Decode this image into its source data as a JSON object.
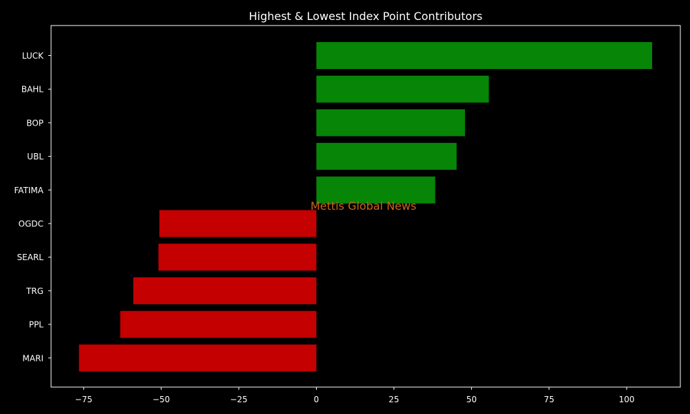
{
  "chart_data": {
    "type": "bar",
    "orientation": "horizontal",
    "title": "Highest & Lowest Index Point Contributors",
    "watermark": "Mettis Global News",
    "categories": [
      "LUCK",
      "BAHL",
      "BOP",
      "UBL",
      "FATIMA",
      "OGDC",
      "SEARL",
      "TRG",
      "PPL",
      "MARI"
    ],
    "values": [
      108.2,
      55.6,
      47.9,
      45.2,
      38.3,
      -50.6,
      -50.9,
      -59.0,
      -63.2,
      -76.5
    ],
    "xlim": [
      -85.5,
      117.3
    ],
    "xticks": [
      -75,
      -50,
      -25,
      0,
      25,
      50,
      75,
      100
    ],
    "xtick_labels": [
      "−75",
      "−50",
      "−25",
      "0",
      "25",
      "50",
      "75",
      "100"
    ],
    "grid": false,
    "colors": {
      "positive": "#078507",
      "negative": "#c40000",
      "background": "#000000",
      "axes": "#ffffff",
      "text": "#ffffff",
      "watermark": "#c8661c"
    }
  }
}
